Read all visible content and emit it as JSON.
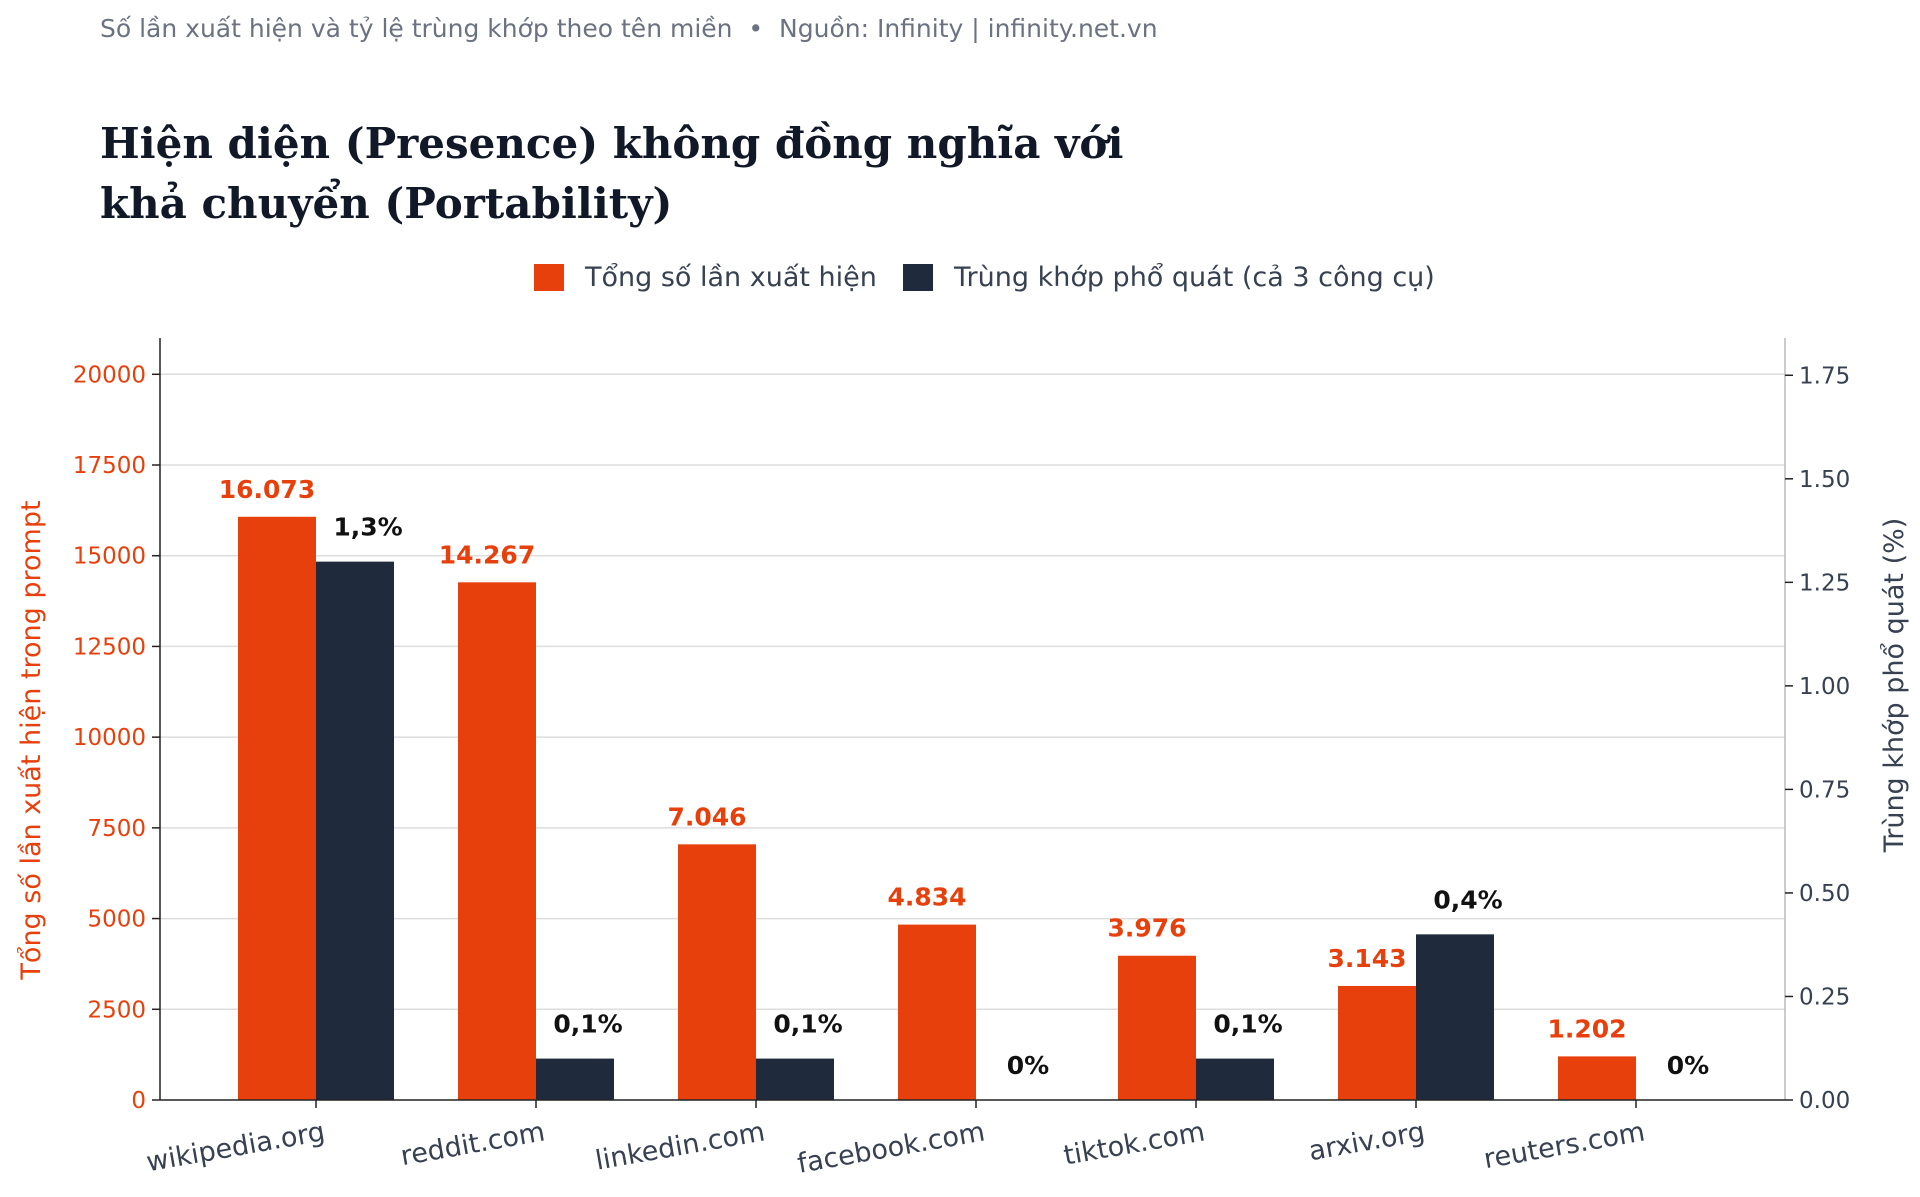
{
  "header": {
    "subtitle": "Số lần xuất hiện và tỷ lệ trùng khớp theo tên miền  •  Nguồn: Infinity | infinity.net.vn",
    "title_line1": "Hiện diện (Presence) không đồng nghĩa với",
    "title_line2": "khả chuyển (Portability)"
  },
  "colors": {
    "total": "#e8400c",
    "match": "#1f2a3c",
    "grid": "#dddddd",
    "axis": "#222222"
  },
  "chart_data": {
    "type": "bar",
    "categories": [
      "wikipedia.org",
      "reddit.com",
      "linkedin.com",
      "facebook.com",
      "tiktok.com",
      "arxiv.org",
      "reuters.com"
    ],
    "series": [
      {
        "name": "Tổng số lần xuất hiện",
        "axis": "left",
        "values": [
          16073,
          14267,
          7046,
          4834,
          3976,
          3143,
          1202
        ],
        "labels": [
          "16.073",
          "14.267",
          "7.046",
          "4.834",
          "3.976",
          "3.143",
          "1.202"
        ]
      },
      {
        "name": "Trùng khớp phổ quát (cả 3 công cụ)",
        "axis": "right",
        "values": [
          1.3,
          0.1,
          0.1,
          0,
          0.1,
          0.4,
          0
        ],
        "labels": [
          "1,3%",
          "0,1%",
          "0,1%",
          "0%",
          "0,1%",
          "0,4%",
          "0%"
        ]
      }
    ],
    "ylabel_left": "Tổng số lần xuất hiện trong prompt",
    "ylabel_right": "Trùng khớp phổ quát (%)",
    "ylim_left": [
      0,
      21000
    ],
    "ylim_right": [
      0,
      1.84
    ],
    "yticks_left": [
      "0",
      "2500",
      "5000",
      "7500",
      "10000",
      "12500",
      "15000",
      "17500",
      "20000"
    ],
    "yticks_right": [
      "0.00",
      "0.25",
      "0.50",
      "0.75",
      "1.00",
      "1.25",
      "1.50",
      "1.75"
    ],
    "grid": true,
    "legend_position": "top-center"
  }
}
